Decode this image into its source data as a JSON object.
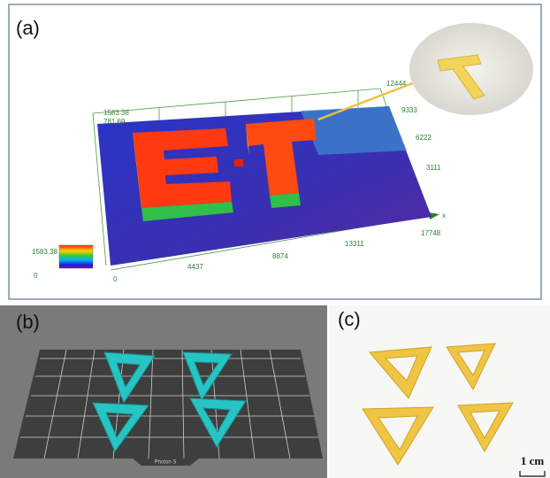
{
  "panels": [
    {
      "label": "(a)",
      "left_labels": [
        "1583.38",
        "781.69"
      ],
      "right_labels": [
        "12444",
        "9333",
        "6222",
        "3111"
      ],
      "x_axis_name": "x",
      "x_labels": [
        "0",
        "4437",
        "8874",
        "13311",
        "17748"
      ],
      "colorbar_labels": [
        "1583.38",
        "0"
      ]
    },
    {
      "label": "(b)",
      "printer_label": "Photon S"
    },
    {
      "label": "(c)",
      "scale_label": "1 cm"
    }
  ]
}
